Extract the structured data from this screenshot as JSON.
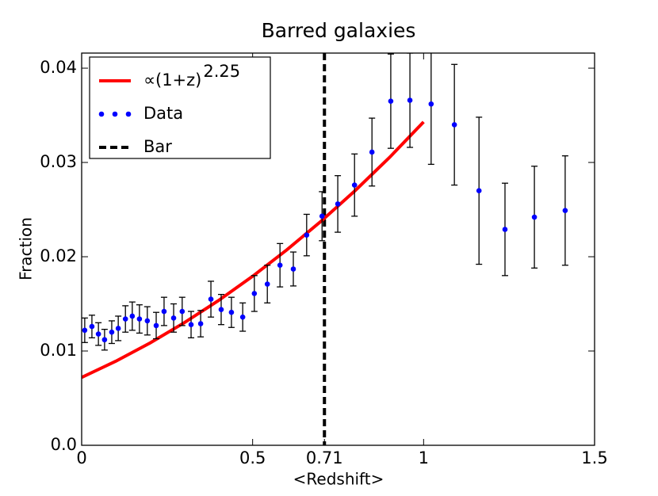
{
  "chart_data": {
    "type": "scatter",
    "title": "Barred galaxies",
    "xlabel": "<Redshift>",
    "ylabel": "Fraction",
    "xlim": [
      0,
      1.5
    ],
    "ylim": [
      0,
      0.0416
    ],
    "xticks": [
      0,
      0.5,
      0.71,
      1,
      1.5
    ],
    "yticks": [
      {
        "value": 0,
        "label": "0.0"
      },
      0.01,
      0.02,
      0.03,
      0.04
    ],
    "legend": "upper left",
    "series": [
      {
        "name": "∝(1+z)",
        "name_superscript": "2.25",
        "type": "line",
        "color": "#ff0000",
        "x": [
          0,
          0.1,
          0.2,
          0.3,
          0.4,
          0.5,
          0.6,
          0.7,
          0.8,
          0.9,
          1.0
        ],
        "values": [
          0.0072,
          0.00892,
          0.01085,
          0.013,
          0.01535,
          0.01793,
          0.02073,
          0.02376,
          0.02702,
          0.03052,
          0.0343
        ]
      },
      {
        "name": "Data",
        "type": "scatter",
        "color": "#0000ff",
        "x": [
          0.009,
          0.03,
          0.049,
          0.067,
          0.088,
          0.107,
          0.128,
          0.148,
          0.169,
          0.192,
          0.218,
          0.241,
          0.269,
          0.294,
          0.32,
          0.348,
          0.378,
          0.408,
          0.438,
          0.471,
          0.505,
          0.543,
          0.58,
          0.619,
          0.658,
          0.703,
          0.749,
          0.798,
          0.849,
          0.904,
          0.96,
          1.022,
          1.09,
          1.162,
          1.238,
          1.324,
          1.414
        ],
        "values": [
          0.0122,
          0.0126,
          0.0118,
          0.0112,
          0.012,
          0.0124,
          0.0134,
          0.0137,
          0.0134,
          0.0132,
          0.0127,
          0.0142,
          0.0135,
          0.0142,
          0.0128,
          0.0129,
          0.0155,
          0.0144,
          0.0141,
          0.0136,
          0.0161,
          0.0171,
          0.0191,
          0.0187,
          0.0223,
          0.0243,
          0.0256,
          0.0276,
          0.0311,
          0.0365,
          0.0366,
          0.0362,
          0.034,
          0.027,
          0.0229,
          0.0242,
          0.0249
        ],
        "errors": [
          0.0013,
          0.0012,
          0.0012,
          0.0011,
          0.0012,
          0.0013,
          0.0014,
          0.0015,
          0.0015,
          0.0015,
          0.0014,
          0.0015,
          0.0015,
          0.0015,
          0.0014,
          0.0014,
          0.0019,
          0.0016,
          0.0016,
          0.0015,
          0.0019,
          0.002,
          0.0023,
          0.0018,
          0.0022,
          0.0026,
          0.003,
          0.0033,
          0.0036,
          0.005,
          0.005,
          0.0064,
          0.0064,
          0.0078,
          0.0049,
          0.0054,
          0.0058
        ]
      }
    ],
    "vline": {
      "name": "Bar",
      "x": 0.71,
      "color": "#000000",
      "style": "dashed"
    }
  }
}
